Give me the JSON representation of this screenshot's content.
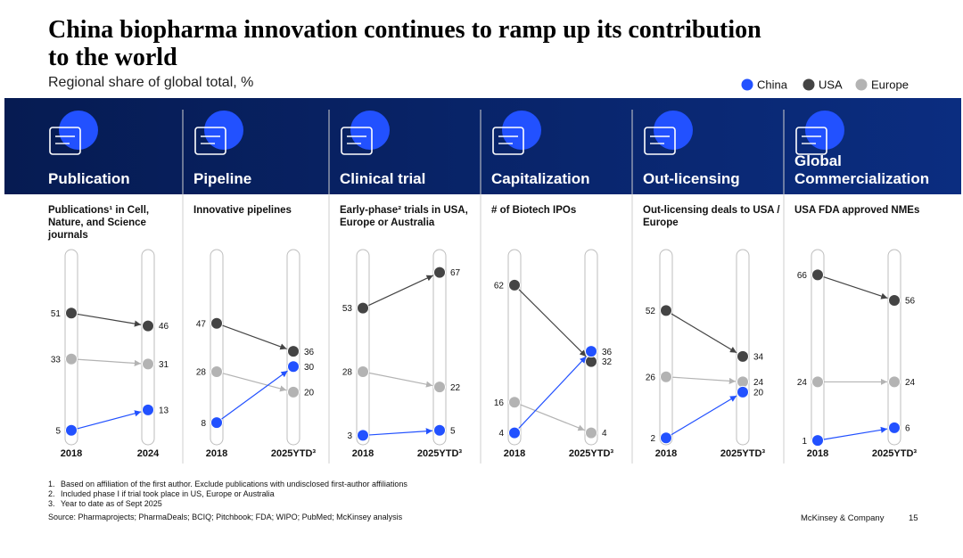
{
  "title": "China biopharma innovation continues to ramp up its contribution to the world",
  "subtitle": "Regional share of global total, %",
  "chart_data": [
    {
      "type": "slope",
      "section": "Publication",
      "subtitle": "Publications¹ in Cell, Nature, and Science journals",
      "categories": [
        "2018",
        "2024"
      ],
      "ylim": [
        0,
        70
      ],
      "series": [
        {
          "name": "China",
          "color": "#2251ff",
          "values": [
            5,
            13
          ]
        },
        {
          "name": "USA",
          "color": "#444444",
          "values": [
            51,
            46
          ]
        },
        {
          "name": "Europe",
          "color": "#b3b3b3",
          "values": [
            33,
            31
          ]
        }
      ]
    },
    {
      "type": "slope",
      "section": "Pipeline",
      "subtitle": "Innovative pipelines",
      "categories": [
        "2018",
        "2025YTD³"
      ],
      "ylim": [
        0,
        70
      ],
      "series": [
        {
          "name": "China",
          "color": "#2251ff",
          "values": [
            8,
            30
          ]
        },
        {
          "name": "USA",
          "color": "#444444",
          "values": [
            47,
            36
          ]
        },
        {
          "name": "Europe",
          "color": "#b3b3b3",
          "values": [
            28,
            20
          ]
        }
      ]
    },
    {
      "type": "slope",
      "section": "Clinical trial",
      "subtitle": "Early-phase² trials in USA, Europe or Australia",
      "categories": [
        "2018",
        "2025YTD³"
      ],
      "ylim": [
        0,
        70
      ],
      "series": [
        {
          "name": "China",
          "color": "#2251ff",
          "values": [
            3,
            5
          ]
        },
        {
          "name": "USA",
          "color": "#444444",
          "values": [
            53,
            67
          ]
        },
        {
          "name": "Europe",
          "color": "#b3b3b3",
          "values": [
            28,
            22
          ]
        }
      ]
    },
    {
      "type": "slope",
      "section": "Capitalization",
      "subtitle": "# of Biotech IPOs",
      "categories": [
        "2018",
        "2025YTD³"
      ],
      "ylim": [
        0,
        70
      ],
      "series": [
        {
          "name": "China",
          "color": "#2251ff",
          "values": [
            4,
            36
          ]
        },
        {
          "name": "USA",
          "color": "#444444",
          "values": [
            62,
            32
          ]
        },
        {
          "name": "Europe",
          "color": "#b3b3b3",
          "values": [
            16,
            4
          ]
        }
      ]
    },
    {
      "type": "slope",
      "section": "Out-licensing",
      "subtitle": "Out-licensing deals to USA / Europe",
      "categories": [
        "2018",
        "2025YTD³"
      ],
      "ylim": [
        0,
        70
      ],
      "series": [
        {
          "name": "China",
          "color": "#2251ff",
          "values": [
            2,
            20
          ]
        },
        {
          "name": "USA",
          "color": "#444444",
          "values": [
            52,
            34
          ]
        },
        {
          "name": "Europe",
          "color": "#b3b3b3",
          "values": [
            26,
            24
          ]
        }
      ]
    },
    {
      "type": "slope",
      "section": "Global Commercialization",
      "subtitle": "USA FDA approved NMEs",
      "categories": [
        "2018",
        "2025YTD³"
      ],
      "ylim": [
        0,
        70
      ],
      "series": [
        {
          "name": "China",
          "color": "#2251ff",
          "values": [
            1,
            6
          ]
        },
        {
          "name": "USA",
          "color": "#444444",
          "values": [
            66,
            56
          ]
        },
        {
          "name": "Europe",
          "color": "#b3b3b3",
          "values": [
            24,
            24
          ]
        }
      ]
    }
  ],
  "footnotes": [
    {
      "number": "1.",
      "text": "Based on affiliation of the first author. Exclude publications with undisclosed first-author affiliations"
    },
    {
      "number": "2.",
      "text": "Included phase I if trial took place in US, Europe or Australia"
    },
    {
      "number": "3.",
      "text": "Year to date as of Sept 2025"
    }
  ],
  "source": "Source: Pharmaprojects; PharmaDeals; BCIQ; Pitchbook; FDA; WIPO; PubMed; McKinsey analysis",
  "brand": "McKinsey & Company",
  "page_number": 15
}
